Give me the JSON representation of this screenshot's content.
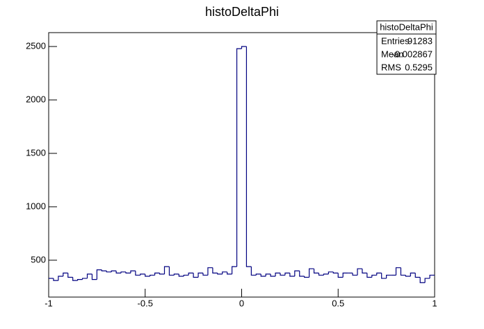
{
  "chart_data": {
    "type": "histogram",
    "title": "histoDeltaPhi",
    "bins": [
      -1,
      -0.975,
      -0.95,
      -0.925,
      -0.9,
      -0.875,
      -0.85,
      -0.825,
      -0.8,
      -0.775,
      -0.75,
      -0.725,
      -0.7,
      -0.675,
      -0.65,
      -0.625,
      -0.6,
      -0.575,
      -0.55,
      -0.525,
      -0.5,
      -0.475,
      -0.45,
      -0.425,
      -0.4,
      -0.375,
      -0.35,
      -0.325,
      -0.3,
      -0.275,
      -0.25,
      -0.225,
      -0.2,
      -0.175,
      -0.15,
      -0.125,
      -0.1,
      -0.075,
      -0.05,
      -0.025,
      0,
      0.025,
      0.05,
      0.075,
      0.1,
      0.125,
      0.15,
      0.175,
      0.2,
      0.225,
      0.25,
      0.275,
      0.3,
      0.325,
      0.35,
      0.375,
      0.4,
      0.425,
      0.45,
      0.475,
      0.5,
      0.525,
      0.55,
      0.575,
      0.6,
      0.625,
      0.65,
      0.675,
      0.7,
      0.725,
      0.75,
      0.775,
      0.8,
      0.825,
      0.85,
      0.875,
      0.9,
      0.925,
      0.95,
      0.975,
      1
    ],
    "values": [
      330,
      310,
      350,
      380,
      340,
      310,
      320,
      330,
      370,
      320,
      410,
      400,
      390,
      400,
      380,
      390,
      380,
      400,
      360,
      370,
      350,
      360,
      380,
      370,
      440,
      360,
      370,
      350,
      360,
      380,
      340,
      380,
      360,
      430,
      380,
      370,
      390,
      370,
      440,
      2480,
      2500,
      440,
      360,
      370,
      350,
      370,
      350,
      380,
      360,
      380,
      350,
      400,
      350,
      340,
      420,
      380,
      360,
      370,
      390,
      380,
      340,
      380,
      380,
      360,
      420,
      380,
      340,
      360,
      380,
      330,
      360,
      360,
      430,
      360,
      350,
      380,
      340,
      290,
      330,
      360
    ],
    "color": "#000080",
    "xlim": [
      -1,
      1
    ],
    "xticks": [
      -1,
      -0.5,
      0,
      0.5,
      1
    ],
    "ylim": [
      155,
      2630
    ],
    "yticks": [
      500,
      1000,
      1500,
      2000,
      2500
    ],
    "stats": {
      "title": "histoDeltaPhi",
      "rows": [
        [
          "Entries",
          "91283"
        ],
        [
          "Mean",
          "-0.002867"
        ],
        [
          "RMS",
          "0.5295"
        ]
      ]
    }
  }
}
